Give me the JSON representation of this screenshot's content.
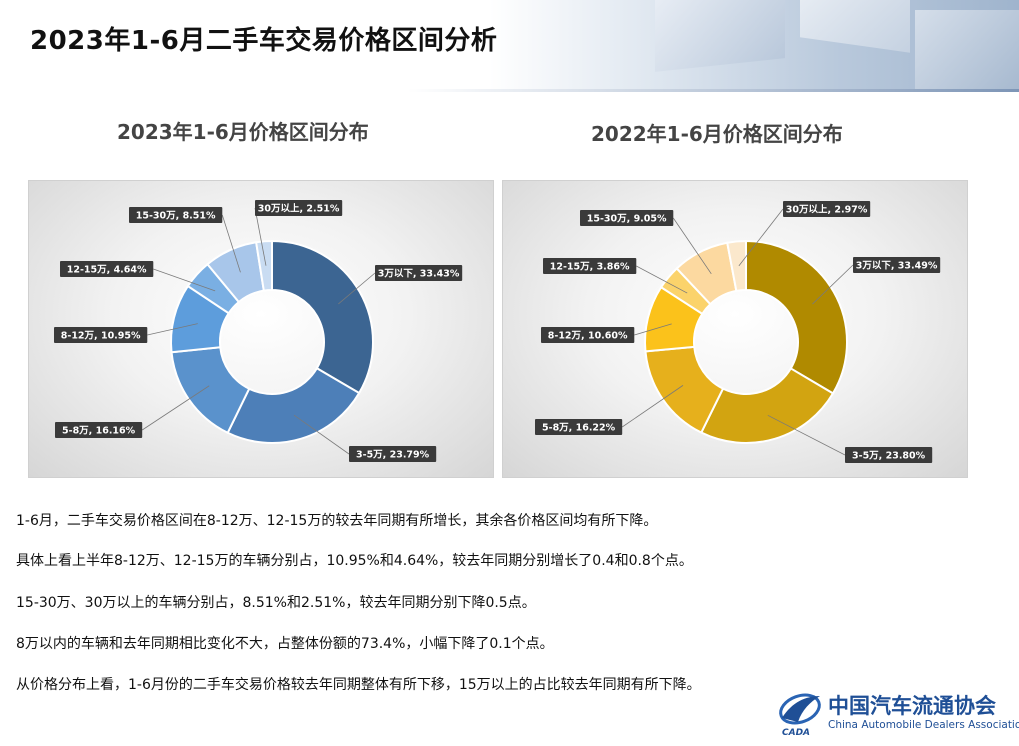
{
  "page": {
    "title": "2023年1-6月二手车交易价格区间分析"
  },
  "chart_data": [
    {
      "type": "pie",
      "variant": "donut",
      "title": "2023年1-6月价格区间分布",
      "categories": [
        "3万以下",
        "3-5万",
        "5-8万",
        "8-12万",
        "12-15万",
        "15-30万",
        "30万以上"
      ],
      "values": [
        33.43,
        23.79,
        16.16,
        10.95,
        4.64,
        8.51,
        2.51
      ],
      "labels": [
        "3万以下, 33.43%",
        "3-5万, 23.79%",
        "5-8万, 16.16%",
        "8-12万, 10.95%",
        "12-15万, 4.64%",
        "15-30万, 8.51%",
        "30万以上, 2.51%"
      ],
      "colors": [
        "#3c6592",
        "#4d7fb8",
        "#5a92cc",
        "#5d9ddc",
        "#7aafe3",
        "#a8c6ea",
        "#c9dcf2"
      ]
    },
    {
      "type": "pie",
      "variant": "donut",
      "title": "2022年1-6月价格区间分布",
      "categories": [
        "3万以下",
        "3-5万",
        "5-8万",
        "8-12万",
        "12-15万",
        "15-30万",
        "30万以上"
      ],
      "values": [
        33.49,
        23.8,
        16.22,
        10.6,
        3.86,
        9.05,
        2.97
      ],
      "labels": [
        "3万以下, 33.49%",
        "3-5万, 23.80%",
        "5-8万, 16.22%",
        "8-12万, 10.60%",
        "12-15万, 3.86%",
        "15-30万, 9.05%",
        "30万以上, 2.97%"
      ],
      "colors": [
        "#b08a00",
        "#d2a411",
        "#e6b01c",
        "#fbc21b",
        "#fbd36b",
        "#fcd9a0",
        "#fbe8cc"
      ]
    }
  ],
  "paragraphs": [
    "1-6月，二手车交易价格区间在8-12万、12-15万的较去年同期有所增长，其余各价格区间均有所下降。",
    "具体上看上半年8-12万、12-15万的车辆分别占，10.95%和4.64%，较去年同期分别增长了0.4和0.8个点。",
    "15-30万、30万以上的车辆分别占，8.51%和2.51%，较去年同期分别下降0.5点。",
    "8万以内的车辆和去年同期相比变化不大，占整体份额的73.4%，小幅下降了0.1个点。",
    "从价格分布上看，1-6月份的二手车交易价格较去年同期整体有所下移，15万以上的占比较去年同期有所下降。"
  ],
  "logo": {
    "cn": "中国汽车流通协会",
    "en": "China Automobile Dealers Association",
    "mark": "CADA"
  }
}
